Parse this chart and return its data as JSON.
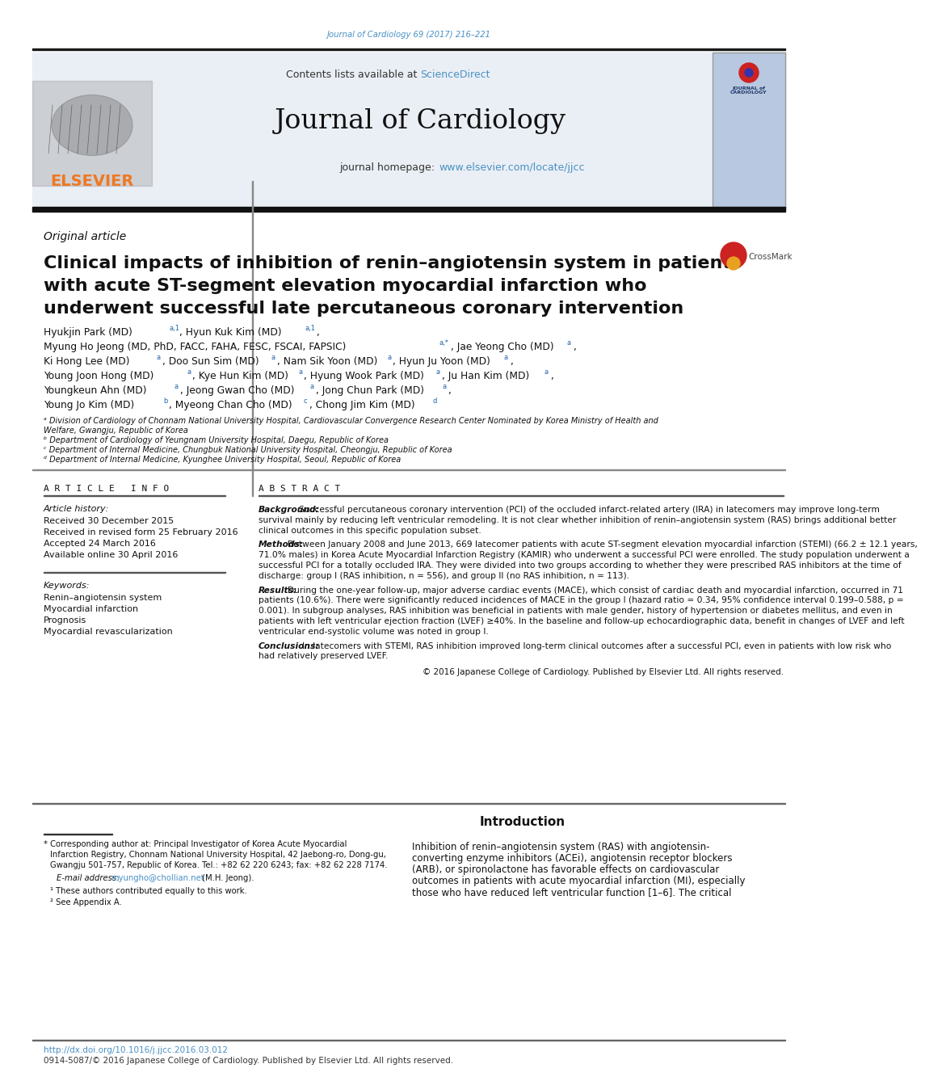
{
  "page_bg": "#ffffff",
  "top_journal_text": "Journal of Cardiology 69 (2017) 216–221",
  "top_journal_color": "#4a90c4",
  "header_bg": "#eaeff5",
  "header_sciencedirect_color": "#4a90c4",
  "header_homepage_url_color": "#4a90c4",
  "elsevier_color": "#f07820",
  "section_label": "Original article",
  "title_line1": "Clinical impacts of inhibition of renin–angiotensin system in patients",
  "title_line2": "with acute ST-segment elevation myocardial infarction who",
  "title_line3": "underwent successful late percutaneous coronary intervention",
  "affil_a": "ᵃ Division of Cardiology of Chonnam National University Hospital, Cardiovascular Convergence Research Center Nominated by Korea Ministry of Health and",
  "affil_a2": "Welfare, Gwangju, Republic of Korea",
  "affil_b": "ᵇ Department of Cardiology of Yeungnam University Hospital, Daegu, Republic of Korea",
  "affil_c": "ᶜ Department of Internal Medicine, Chungbuk National University Hospital, Cheongju, Republic of Korea",
  "affil_d": "ᵈ Department of Internal Medicine, Kyunghee University Hospital, Seoul, Republic of Korea",
  "article_info_label": "A R T I C L E   I N F O",
  "article_history_label": "Article history:",
  "received_text": "Received 30 December 2015",
  "revised_text": "Received in revised form 25 February 2016",
  "accepted_text": "Accepted 24 March 2016",
  "online_text": "Available online 30 April 2016",
  "keywords_label": "Keywords:",
  "kw1": "Renin–angiotensin system",
  "kw2": "Myocardial infarction",
  "kw3": "Prognosis",
  "kw4": "Myocardial revascularization",
  "abstract_label": "A B S T R A C T",
  "abstract_bg_label": "Background:",
  "abstract_background": "  Successful percutaneous coronary intervention (PCI) of the occluded infarct-related artery (IRA) in latecomers may improve long-term survival mainly by reducing left ventricular remodeling. It is not clear whether inhibition of renin–angiotensin system (RAS) brings additional better clinical outcomes in this specific population subset.",
  "abstract_methods_label": "Methods:",
  "abstract_methods": "  Between January 2008 and June 2013, 669 latecomer patients with acute ST-segment elevation myocardial infarction (STEMI) (66.2 ± 12.1 years, 71.0% males) in Korea Acute Myocardial Infarction Registry (KAMIR) who underwent a successful PCI were enrolled. The study population underwent a successful PCI for a totally occluded IRA. They were divided into two groups according to whether they were prescribed RAS inhibitors at the time of discharge: group I (RAS inhibition, n = 556), and group II (no RAS inhibition, n = 113).",
  "abstract_results_label": "Results:",
  "abstract_results": "  During the one-year follow-up, major adverse cardiac events (MACE), which consist of cardiac death and myocardial infarction, occurred in 71 patients (10.6%). There were significantly reduced incidences of MACE in the group I (hazard ratio = 0.34, 95% confidence interval 0.199–0.588, p = 0.001). In subgroup analyses, RAS inhibition was beneficial in patients with male gender, history of hypertension or diabetes mellitus, and even in patients with left ventricular ejection fraction (LVEF) ≥40%. In the baseline and follow-up echocardiographic data, benefit in changes of LVEF and left ventricular end-systolic volume was noted in group I.",
  "abstract_conclusions_label": "Conclusions:",
  "abstract_conclusions": "  In latecomers with STEMI, RAS inhibition improved long-term clinical outcomes after a successful PCI, even in patients with low risk who had relatively preserved LVEF.",
  "copyright_text": "© 2016 Japanese College of Cardiology. Published by Elsevier Ltd. All rights reserved.",
  "intro_title": "Introduction",
  "intro_text1": "Inhibition of renin–angiotensin system (RAS) with angiotensin-",
  "intro_text2": "converting enzyme inhibitors (ACEi), angiotensin receptor blockers",
  "intro_text3": "(ARB), or spironolactone has favorable effects on cardiovascular",
  "intro_text4": "outcomes in patients with acute myocardial infarction (MI), especially",
  "intro_text5": "those who have reduced left ventricular function [1–6]. The critical",
  "footnote_star": "* Corresponding author at: Principal Investigator of Korea Acute Myocardial",
  "footnote_star2": "Infarction Registry, Chonnam National University Hospital, 42 Jaebong-ro, Dong-gu,",
  "footnote_star3": "Gwangju 501-757, Republic of Korea. Tel.: +82 62 220 6243; fax: +82 62 228 7174.",
  "footnote_email_label": "E-mail address: ",
  "footnote_email_url": "myungho@chollian.net",
  "footnote_email_rest": " (M.H. Jeong).",
  "footnote1": "¹ These authors contributed equally to this work.",
  "footnote2": "² See Appendix A.",
  "doi_text": "http://dx.doi.org/10.1016/j.jjcc.2016.03.012",
  "issn_text": "0914-5087/© 2016 Japanese College of Cardiology. Published by Elsevier Ltd. All rights reserved."
}
